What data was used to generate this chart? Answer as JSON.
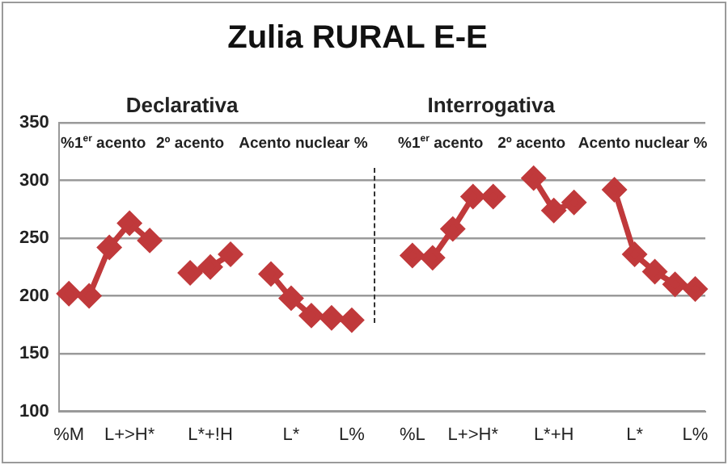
{
  "chart_data": {
    "type": "line",
    "title": "Zulia RURAL E-E",
    "categories": [
      "%M",
      null,
      null,
      "L+>H*",
      null,
      null,
      null,
      "L*+!H",
      null,
      null,
      null,
      "L*",
      null,
      null,
      "L%",
      null,
      null,
      "%L",
      null,
      null,
      "L+>H*",
      null,
      null,
      null,
      "L*+H",
      null,
      null,
      null,
      "L*",
      null,
      null,
      "L%"
    ],
    "series": [
      {
        "color": "#c0393b",
        "values": [
          202,
          200,
          242,
          263,
          248,
          null,
          220,
          225,
          236,
          null,
          219,
          198,
          183,
          181,
          179,
          null,
          null,
          235,
          233,
          258,
          286,
          286,
          null,
          302,
          274,
          281,
          null,
          292,
          236,
          221,
          210,
          206
        ]
      }
    ],
    "ylim": [
      100,
      350
    ],
    "yticks": [
      100,
      150,
      200,
      250,
      300,
      350
    ],
    "grid": "y",
    "legend": false,
    "marker": "diamond",
    "line_style": "solid",
    "annotations": [
      "Declarativa",
      "Interrogativa",
      "%1$^{er}$ acento",
      "2º acento",
      "Acento nuclear %",
      "%1$^{er}$ acento",
      "2º acento",
      "Acento nuclear %"
    ]
  }
}
